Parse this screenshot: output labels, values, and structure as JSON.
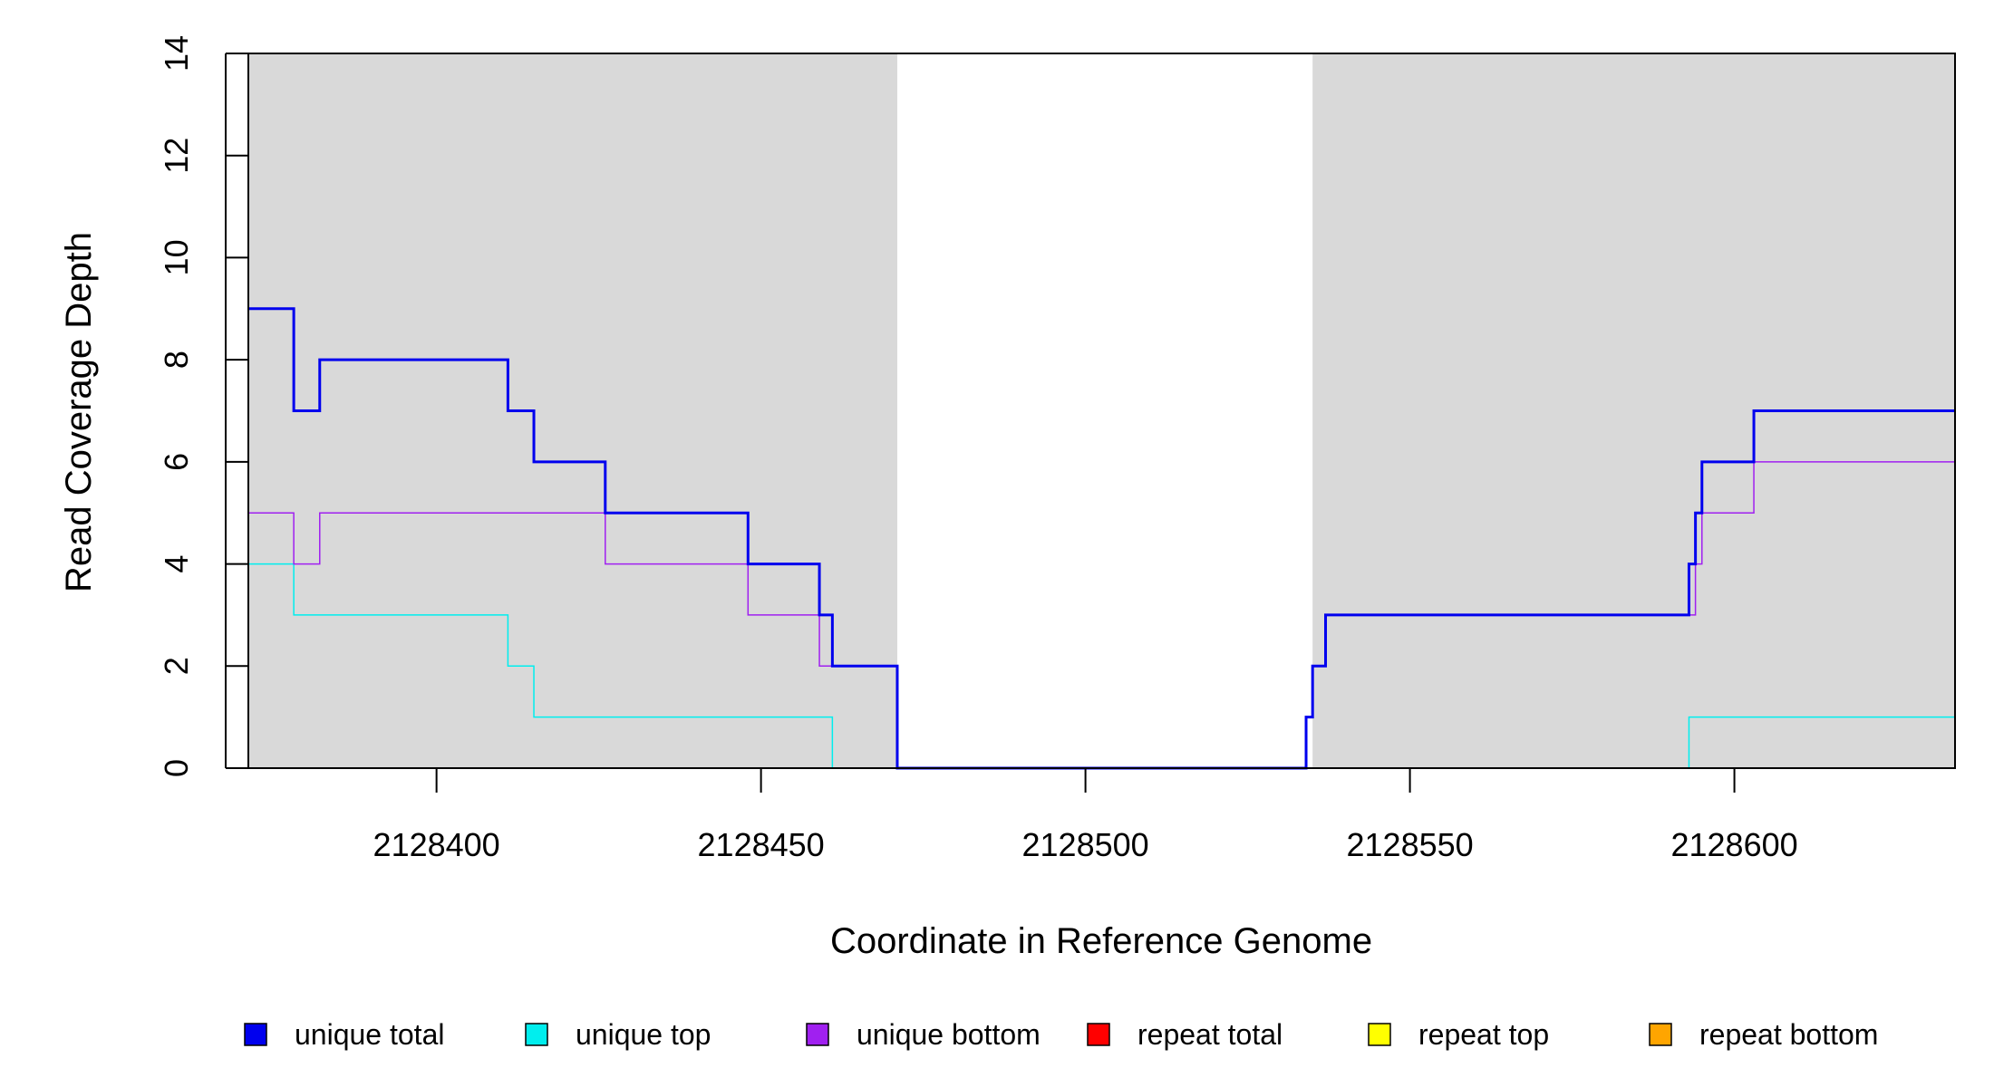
{
  "chart_data": {
    "type": "line",
    "title": "",
    "xlabel": "Coordinate in Reference Genome",
    "ylabel": "Read Coverage Depth",
    "xlim": [
      2128371,
      2128634
    ],
    "ylim": [
      0,
      14
    ],
    "x_ticks": [
      2128400,
      2128450,
      2128500,
      2128550,
      2128600
    ],
    "y_ticks": [
      0,
      2,
      4,
      6,
      8,
      10,
      12,
      14
    ],
    "shaded_regions": [
      [
        2128371,
        2128471
      ],
      [
        2128535,
        2128634
      ]
    ],
    "legend_position": "bottom",
    "series": [
      {
        "name": "unique total",
        "color": "#0000ee",
        "points": [
          [
            2128371,
            9
          ],
          [
            2128378,
            7
          ],
          [
            2128382,
            8
          ],
          [
            2128411,
            7
          ],
          [
            2128415,
            6
          ],
          [
            2128426,
            5
          ],
          [
            2128448,
            4
          ],
          [
            2128459,
            3
          ],
          [
            2128461,
            2
          ],
          [
            2128471,
            0
          ],
          [
            2128534,
            1
          ],
          [
            2128535,
            2
          ],
          [
            2128537,
            3
          ],
          [
            2128593,
            4
          ],
          [
            2128594,
            5
          ],
          [
            2128595,
            6
          ],
          [
            2128603,
            7
          ],
          [
            2128634,
            7
          ]
        ]
      },
      {
        "name": "unique top",
        "color": "#00eeee",
        "points": [
          [
            2128371,
            4
          ],
          [
            2128378,
            3
          ],
          [
            2128411,
            2
          ],
          [
            2128415,
            1
          ],
          [
            2128461,
            0
          ],
          [
            2128593,
            1
          ],
          [
            2128634,
            1
          ]
        ]
      },
      {
        "name": "unique bottom",
        "color": "#a020f0",
        "points": [
          [
            2128371,
            5
          ],
          [
            2128378,
            4
          ],
          [
            2128382,
            5
          ],
          [
            2128426,
            4
          ],
          [
            2128448,
            3
          ],
          [
            2128459,
            2
          ],
          [
            2128471,
            0
          ],
          [
            2128534,
            1
          ],
          [
            2128535,
            2
          ],
          [
            2128537,
            3
          ],
          [
            2128594,
            4
          ],
          [
            2128595,
            5
          ],
          [
            2128603,
            6
          ],
          [
            2128634,
            6
          ]
        ]
      },
      {
        "name": "repeat total",
        "color": "#ff0000",
        "points": [
          [
            2128371,
            0
          ],
          [
            2128634,
            0
          ]
        ]
      },
      {
        "name": "repeat top",
        "color": "#ffff00",
        "points": [
          [
            2128371,
            0
          ],
          [
            2128634,
            0
          ]
        ]
      },
      {
        "name": "repeat bottom",
        "color": "#ffa500",
        "points": [
          [
            2128371,
            0
          ],
          [
            2128634,
            0
          ]
        ]
      }
    ]
  }
}
